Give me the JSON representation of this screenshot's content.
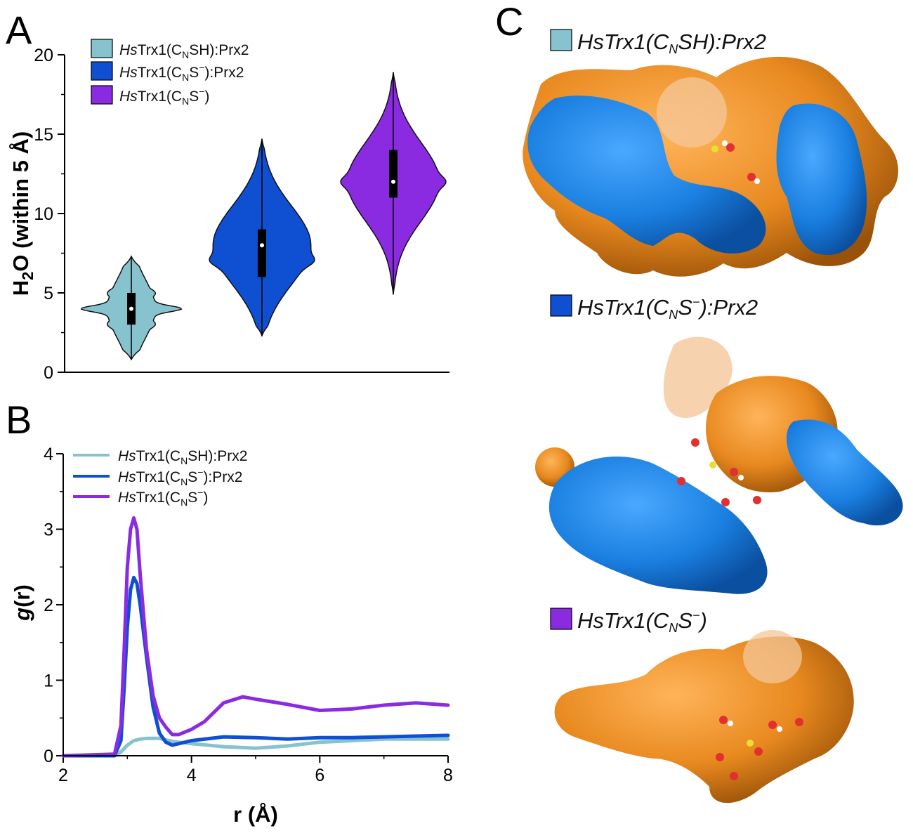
{
  "panels": {
    "a": "A",
    "b": "B",
    "c": "C"
  },
  "colors": {
    "teal": "#87c3cf",
    "blue": "#0f4fd1",
    "purple": "#8a2be2",
    "surface_blue": "#1a82e0",
    "surface_orange": "#ea8a24"
  },
  "chart_data": [
    {
      "type": "violin",
      "panel": "A",
      "ylabel_parts": [
        "H",
        "2",
        "O (within 5 Å)"
      ],
      "ylim": [
        0,
        20
      ],
      "yticks": [
        0,
        5,
        10,
        15,
        20
      ],
      "series": [
        {
          "name_parts": [
            "Hs",
            "Trx1(C",
            "N",
            "SH):Prx2"
          ],
          "color": "#87c3cf",
          "median": 4,
          "q1": 3,
          "q3": 5,
          "min": 0.8,
          "max": 7.3
        },
        {
          "name_parts": [
            "Hs",
            "Trx1(C",
            "N",
            "S",
            "−",
            "):Prx2"
          ],
          "color": "#0f4fd1",
          "median": 8,
          "q1": 6,
          "q3": 9,
          "min": 2.3,
          "max": 14.7
        },
        {
          "name_parts": [
            "Hs",
            "Trx1(C",
            "N",
            "S",
            "−",
            ")"
          ],
          "color": "#8a2be2",
          "median": 12,
          "q1": 11,
          "q3": 14,
          "min": 4.9,
          "max": 18.9
        }
      ],
      "legend": "top-left"
    },
    {
      "type": "line",
      "panel": "B",
      "xlabel": "r (Å)",
      "ylabel_parts": [
        "g",
        "(r)"
      ],
      "xlim": [
        2,
        8
      ],
      "ylim": [
        0,
        4
      ],
      "xticks": [
        2,
        4,
        6,
        8
      ],
      "yticks": [
        0,
        1,
        2,
        3,
        4
      ],
      "legend": "top-left",
      "series": [
        {
          "name_parts": [
            "Hs",
            "Trx1(C",
            "N",
            "SH):Prx2"
          ],
          "color": "#87c3cf",
          "x": [
            2.0,
            2.8,
            2.9,
            3.0,
            3.1,
            3.2,
            3.3,
            3.5,
            3.7,
            4.0,
            4.5,
            5.0,
            5.5,
            6.0,
            6.5,
            7.0,
            7.5,
            8.0
          ],
          "y": [
            0.0,
            0.0,
            0.05,
            0.14,
            0.2,
            0.22,
            0.23,
            0.23,
            0.19,
            0.16,
            0.12,
            0.1,
            0.13,
            0.18,
            0.2,
            0.22,
            0.22,
            0.22
          ]
        },
        {
          "name_parts": [
            "Hs",
            "Trx1(C",
            "N",
            "S",
            "−",
            "):Prx2"
          ],
          "color": "#0f4fd1",
          "x": [
            2.0,
            2.8,
            2.9,
            2.95,
            3.0,
            3.05,
            3.1,
            3.15,
            3.2,
            3.3,
            3.4,
            3.5,
            3.6,
            3.7,
            3.8,
            4.0,
            4.5,
            5.0,
            5.5,
            6.0,
            6.5,
            7.0,
            7.5,
            8.0
          ],
          "y": [
            0.0,
            0.0,
            0.2,
            0.9,
            1.7,
            2.2,
            2.36,
            2.28,
            2.0,
            1.3,
            0.65,
            0.3,
            0.18,
            0.14,
            0.16,
            0.2,
            0.25,
            0.24,
            0.22,
            0.24,
            0.24,
            0.25,
            0.26,
            0.27
          ]
        },
        {
          "name_parts": [
            "Hs",
            "Trx1(C",
            "N",
            "S",
            "−",
            ")"
          ],
          "color": "#8a2be2",
          "x": [
            2.0,
            2.8,
            2.9,
            2.95,
            3.0,
            3.05,
            3.1,
            3.15,
            3.2,
            3.3,
            3.4,
            3.5,
            3.6,
            3.7,
            3.8,
            4.0,
            4.2,
            4.5,
            4.8,
            5.0,
            5.5,
            6.0,
            6.5,
            7.0,
            7.5,
            8.0
          ],
          "y": [
            0.0,
            0.02,
            0.4,
            1.4,
            2.5,
            3.0,
            3.15,
            3.0,
            2.4,
            1.4,
            0.8,
            0.5,
            0.38,
            0.28,
            0.28,
            0.35,
            0.45,
            0.7,
            0.78,
            0.75,
            0.68,
            0.6,
            0.62,
            0.67,
            0.7,
            0.67
          ]
        }
      ]
    }
  ],
  "panel_c": {
    "labels": [
      {
        "parts": [
          "HsTrx1(C",
          "N",
          "SH):Prx2"
        ],
        "color": "#87c3cf"
      },
      {
        "parts": [
          "HsTrx1(C",
          "N",
          "S",
          "−",
          "):Prx2"
        ],
        "color": "#0f4fd1"
      },
      {
        "parts": [
          "HsTrx1(C",
          "N",
          "S",
          "−",
          ")"
        ],
        "color": "#8a2be2"
      }
    ]
  }
}
